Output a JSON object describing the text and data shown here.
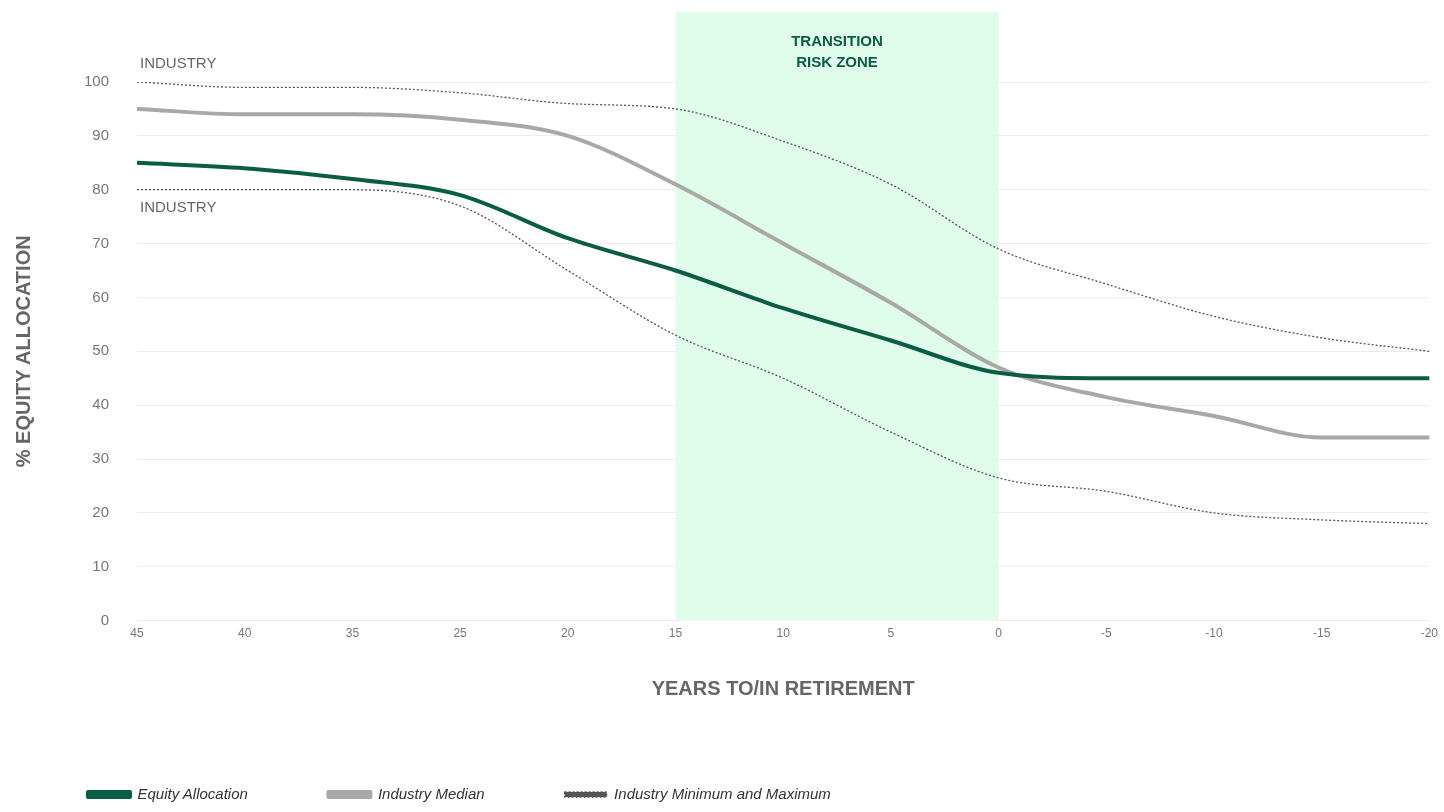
{
  "chart_data": {
    "type": "line",
    "xlabel": "YEARS TO/IN RETIREMENT",
    "ylabel": "% EQUITY ALLOCATION",
    "categories": [
      "45",
      "40",
      "35",
      "25",
      "20",
      "15",
      "10",
      "5",
      "0",
      "-5",
      "-10",
      "-15",
      "-20"
    ],
    "series": [
      {
        "name": "Equity Allocation",
        "color": "#0b5c45",
        "values": [
          85,
          84,
          82,
          79,
          71,
          65,
          58,
          52,
          46,
          45,
          45,
          45,
          45
        ]
      },
      {
        "name": "Industry Median",
        "color": "#a8a8a8",
        "values": [
          95,
          94,
          94,
          93,
          90,
          81,
          70,
          59,
          47,
          41.5,
          38,
          34,
          34
        ]
      },
      {
        "name": "Industry Minimum and Maximum",
        "color": "#555555",
        "line_style": "dotted",
        "values": [
          100,
          99,
          99,
          98,
          96,
          95,
          89,
          81,
          69,
          62.5,
          56.5,
          52.5,
          50
        ]
      },
      {
        "color": "#555555",
        "line_style": "dotted",
        "values": [
          80,
          80,
          80,
          77,
          65,
          53,
          45,
          35,
          26.5,
          24,
          20,
          18.7,
          18
        ]
      }
    ],
    "ylim": [
      0,
      100
    ],
    "yticks": [
      0,
      10,
      20,
      30,
      40,
      50,
      60,
      70,
      80,
      90,
      100
    ],
    "grid": "y",
    "legend": "bottom left",
    "marker": "none",
    "bands": [
      {
        "axis": "x",
        "from": "15",
        "to": "0",
        "label": "TRANSITION RISK ZONE",
        "color": "#e0fcea"
      }
    ],
    "annotations": [
      {
        "text": "INDUSTRY",
        "x": "45",
        "y": 100
      },
      {
        "text": "INDUSTRY",
        "x": "45",
        "y": 80
      }
    ]
  }
}
